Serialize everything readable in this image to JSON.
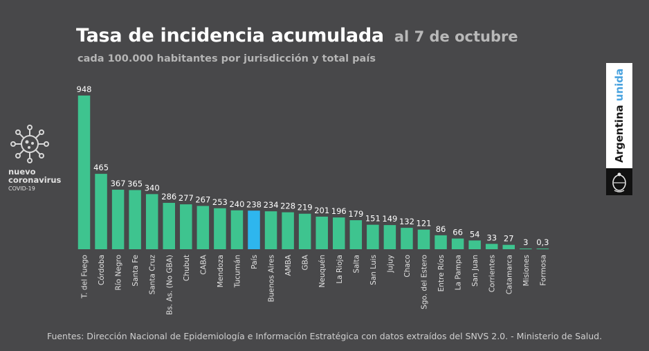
{
  "header": {
    "title": "Tasa de incidencia acumulada",
    "date": "al 7 de octubre",
    "subtitle": "cada 100.000 habitantes por jurisdicción y total país"
  },
  "logo_left": {
    "line1": "nuevo",
    "line2": "coronavirus",
    "line3": "COVID-19",
    "icon": "virus-icon"
  },
  "badge": {
    "text_main": "Argentina",
    "text_accent": "unida",
    "icon": "coat-of-arms-icon"
  },
  "source": "Fuentes: Dirección Nacional de Epidemiología e Información Estratégica con datos extraídos del SNVS 2.0. - Ministerio de Salud.",
  "colors": {
    "bar": "#3ec48f",
    "highlight": "#2eb6ee",
    "background": "#48484a"
  },
  "chart_data": {
    "type": "bar",
    "categories": [
      "T. del Fuego",
      "Córdoba",
      "Río Negro",
      "Santa Fe",
      "Santa Cruz",
      "Bs. As. (No GBA)",
      "Chubut",
      "CABA",
      "Mendoza",
      "Tucumán",
      "País",
      "Buenos Aires",
      "AMBA",
      "GBA",
      "Neuquén",
      "La Rioja",
      "Salta",
      "San Luis",
      "Jujuy",
      "Chaco",
      "Sgo. del Estero",
      "Entre Ríos",
      "La Pampa",
      "San Juan",
      "Corrientes",
      "Catamarca",
      "Misiones",
      "Formosa"
    ],
    "values": [
      948,
      465,
      367,
      365,
      340,
      286,
      277,
      267,
      253,
      240,
      238,
      234,
      228,
      219,
      201,
      196,
      179,
      151,
      149,
      132,
      121,
      86,
      66,
      54,
      33,
      27,
      3,
      0.3
    ],
    "value_labels": [
      "948",
      "465",
      "367",
      "365",
      "340",
      "286",
      "277",
      "267",
      "253",
      "240",
      "238",
      "234",
      "228",
      "219",
      "201",
      "196",
      "179",
      "151",
      "149",
      "132",
      "121",
      "86",
      "66",
      "54",
      "33",
      "27",
      "3",
      "0,3"
    ],
    "highlight_category": "País",
    "ylim": [
      0,
      948
    ],
    "grid": false,
    "legend": "none"
  }
}
